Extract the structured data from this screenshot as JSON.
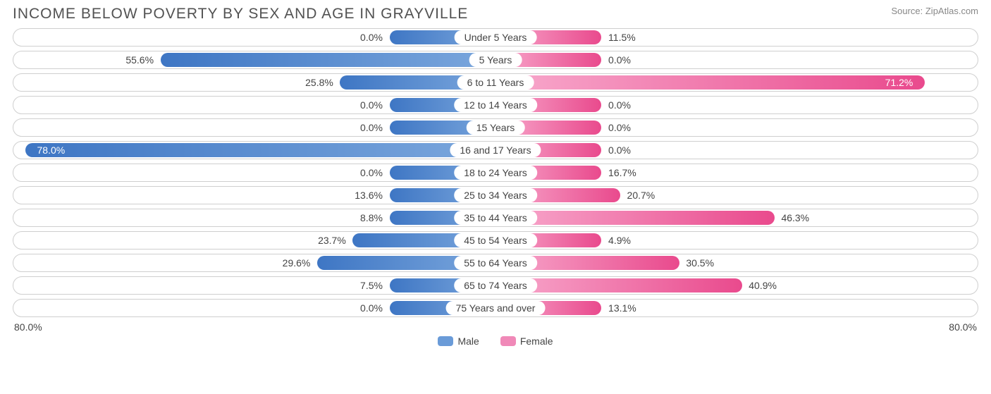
{
  "title": "INCOME BELOW POVERTY BY SEX AND AGE IN GRAYVILLE",
  "source": "Source: ZipAtlas.com",
  "axis_max": 80.0,
  "axis_label_left": "80.0%",
  "axis_label_right": "80.0%",
  "colors": {
    "male_start": "#7ba7dd",
    "male_end": "#3e76c4",
    "female_start": "#f8aacd",
    "female_end": "#e94a8d",
    "track_border": "#cfcfcf",
    "text": "#444444",
    "title_text": "#525252",
    "source_text": "#888888",
    "background": "#ffffff"
  },
  "legend": {
    "male": "Male",
    "female": "Female",
    "male_swatch": "#6a9bd8",
    "female_swatch": "#f089b8"
  },
  "min_bar_pct": 11.0,
  "rows": [
    {
      "label": "Under 5 Years",
      "male": 0.0,
      "male_label": "0.0%",
      "female": 11.5,
      "female_label": "11.5%"
    },
    {
      "label": "5 Years",
      "male": 55.6,
      "male_label": "55.6%",
      "female": 0.0,
      "female_label": "0.0%"
    },
    {
      "label": "6 to 11 Years",
      "male": 25.8,
      "male_label": "25.8%",
      "female": 71.2,
      "female_label": "71.2%"
    },
    {
      "label": "12 to 14 Years",
      "male": 0.0,
      "male_label": "0.0%",
      "female": 0.0,
      "female_label": "0.0%"
    },
    {
      "label": "15 Years",
      "male": 0.0,
      "male_label": "0.0%",
      "female": 0.0,
      "female_label": "0.0%"
    },
    {
      "label": "16 and 17 Years",
      "male": 78.0,
      "male_label": "78.0%",
      "female": 0.0,
      "female_label": "0.0%"
    },
    {
      "label": "18 to 24 Years",
      "male": 0.0,
      "male_label": "0.0%",
      "female": 16.7,
      "female_label": "16.7%"
    },
    {
      "label": "25 to 34 Years",
      "male": 13.6,
      "male_label": "13.6%",
      "female": 20.7,
      "female_label": "20.7%"
    },
    {
      "label": "35 to 44 Years",
      "male": 8.8,
      "male_label": "8.8%",
      "female": 46.3,
      "female_label": "46.3%"
    },
    {
      "label": "45 to 54 Years",
      "male": 23.7,
      "male_label": "23.7%",
      "female": 4.9,
      "female_label": "4.9%"
    },
    {
      "label": "55 to 64 Years",
      "male": 29.6,
      "male_label": "29.6%",
      "female": 30.5,
      "female_label": "30.5%"
    },
    {
      "label": "65 to 74 Years",
      "male": 7.5,
      "male_label": "7.5%",
      "female": 40.9,
      "female_label": "40.9%"
    },
    {
      "label": "75 Years and over",
      "male": 0.0,
      "male_label": "0.0%",
      "female": 13.1,
      "female_label": "13.1%"
    }
  ]
}
